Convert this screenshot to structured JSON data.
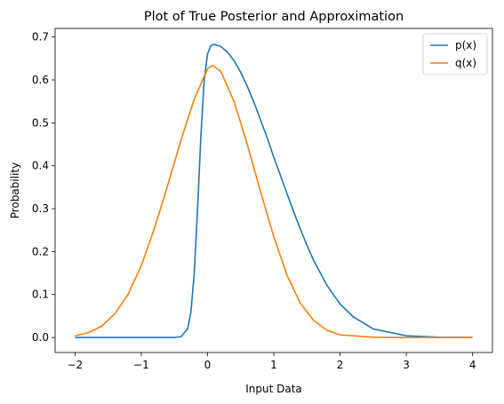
{
  "chart_data": {
    "type": "line",
    "title": "Plot of True Posterior and Approximation",
    "xlabel": "Input Data",
    "ylabel": "Probability",
    "xlim": [
      -2.3,
      4.3
    ],
    "ylim": [
      -0.035,
      0.72
    ],
    "xticks": [
      -2,
      -1,
      0,
      1,
      2,
      3,
      4
    ],
    "xtick_labels": [
      "−2",
      "−1",
      "0",
      "1",
      "2",
      "3",
      "4"
    ],
    "yticks": [
      0.0,
      0.1,
      0.2,
      0.3,
      0.4,
      0.5,
      0.6,
      0.7
    ],
    "ytick_labels": [
      "0.0",
      "0.1",
      "0.2",
      "0.3",
      "0.4",
      "0.5",
      "0.6",
      "0.7"
    ],
    "grid": false,
    "legend_position": "top-right",
    "series": [
      {
        "name": "p(x)",
        "color": "#1f77b4",
        "x": [
          -2.0,
          -1.0,
          -0.5,
          -0.4,
          -0.3,
          -0.25,
          -0.2,
          -0.15,
          -0.1,
          -0.05,
          0.0,
          0.05,
          0.1,
          0.2,
          0.3,
          0.4,
          0.5,
          0.6,
          0.7,
          0.8,
          0.9,
          1.0,
          1.1,
          1.2,
          1.3,
          1.4,
          1.5,
          1.6,
          1.8,
          2.0,
          2.2,
          2.5,
          3.0,
          3.5,
          4.0
        ],
        "y": [
          0.0,
          0.0,
          0.0,
          0.002,
          0.02,
          0.06,
          0.15,
          0.3,
          0.47,
          0.6,
          0.66,
          0.68,
          0.683,
          0.678,
          0.665,
          0.645,
          0.618,
          0.585,
          0.548,
          0.507,
          0.465,
          0.42,
          0.378,
          0.335,
          0.293,
          0.253,
          0.215,
          0.18,
          0.122,
          0.078,
          0.048,
          0.02,
          0.004,
          0.0007,
          0.0001
        ]
      },
      {
        "name": "q(x)",
        "color": "#ff7f0e",
        "x": [
          -2.0,
          -1.8,
          -1.6,
          -1.4,
          -1.2,
          -1.0,
          -0.8,
          -0.6,
          -0.4,
          -0.2,
          0.0,
          0.08,
          0.2,
          0.4,
          0.6,
          0.8,
          1.0,
          1.2,
          1.4,
          1.6,
          1.8,
          2.0,
          2.5,
          3.0,
          3.5,
          4.0
        ],
        "y": [
          0.004,
          0.011,
          0.026,
          0.055,
          0.1,
          0.167,
          0.255,
          0.355,
          0.46,
          0.555,
          0.626,
          0.634,
          0.62,
          0.55,
          0.45,
          0.34,
          0.235,
          0.145,
          0.08,
          0.04,
          0.017,
          0.006,
          0.0005,
          0.0,
          0.0,
          0.0
        ]
      }
    ]
  }
}
